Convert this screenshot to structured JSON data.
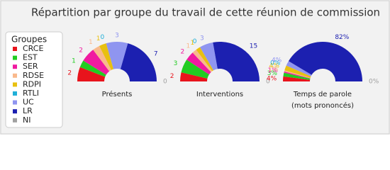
{
  "title": "Répartition par groupe du travail de cette réunion de commission",
  "legend_title": "Groupes",
  "chart_data": [
    {
      "type": "pie",
      "semicircle": true,
      "donut": true,
      "title": "Présents",
      "categories": [
        "CRCE",
        "EST",
        "SER",
        "RDSE",
        "RDPI",
        "RTLI",
        "UC",
        "LR",
        "NI"
      ],
      "colors": [
        "#e8141c",
        "#22cc22",
        "#f01aa0",
        "#f9b98c",
        "#e8c010",
        "#20b0d8",
        "#8f95f0",
        "#1c20b0",
        "#a0a0a0"
      ],
      "values": [
        2,
        1,
        2,
        1,
        1,
        0,
        3,
        7,
        0
      ]
    },
    {
      "type": "pie",
      "semicircle": true,
      "donut": true,
      "title": "Interventions",
      "categories": [
        "CRCE",
        "EST",
        "SER",
        "RDSE",
        "RDPI",
        "RTLI",
        "UC",
        "LR",
        "NI"
      ],
      "colors": [
        "#e8141c",
        "#22cc22",
        "#f01aa0",
        "#f9b98c",
        "#e8c010",
        "#20b0d8",
        "#8f95f0",
        "#1c20b0",
        "#a0a0a0"
      ],
      "values": [
        2,
        3,
        2,
        1,
        1,
        0,
        3,
        15,
        0
      ]
    },
    {
      "type": "pie",
      "semicircle": true,
      "donut": true,
      "title": "Temps de parole (mots prononcés)",
      "categories": [
        "CRCE",
        "EST",
        "SER",
        "RDSE",
        "RDPI",
        "RTLI",
        "UC",
        "LR",
        "NI"
      ],
      "colors": [
        "#e8141c",
        "#22cc22",
        "#f01aa0",
        "#f9b98c",
        "#e8c010",
        "#20b0d8",
        "#8f95f0",
        "#1c20b0",
        "#a0a0a0"
      ],
      "values": [
        4,
        3,
        1,
        1,
        4,
        0,
        4,
        82,
        0
      ],
      "value_labels": [
        "4%",
        "3%",
        "1%",
        "1%",
        "4%",
        "0%",
        "4%",
        "82%",
        "0%"
      ]
    }
  ]
}
